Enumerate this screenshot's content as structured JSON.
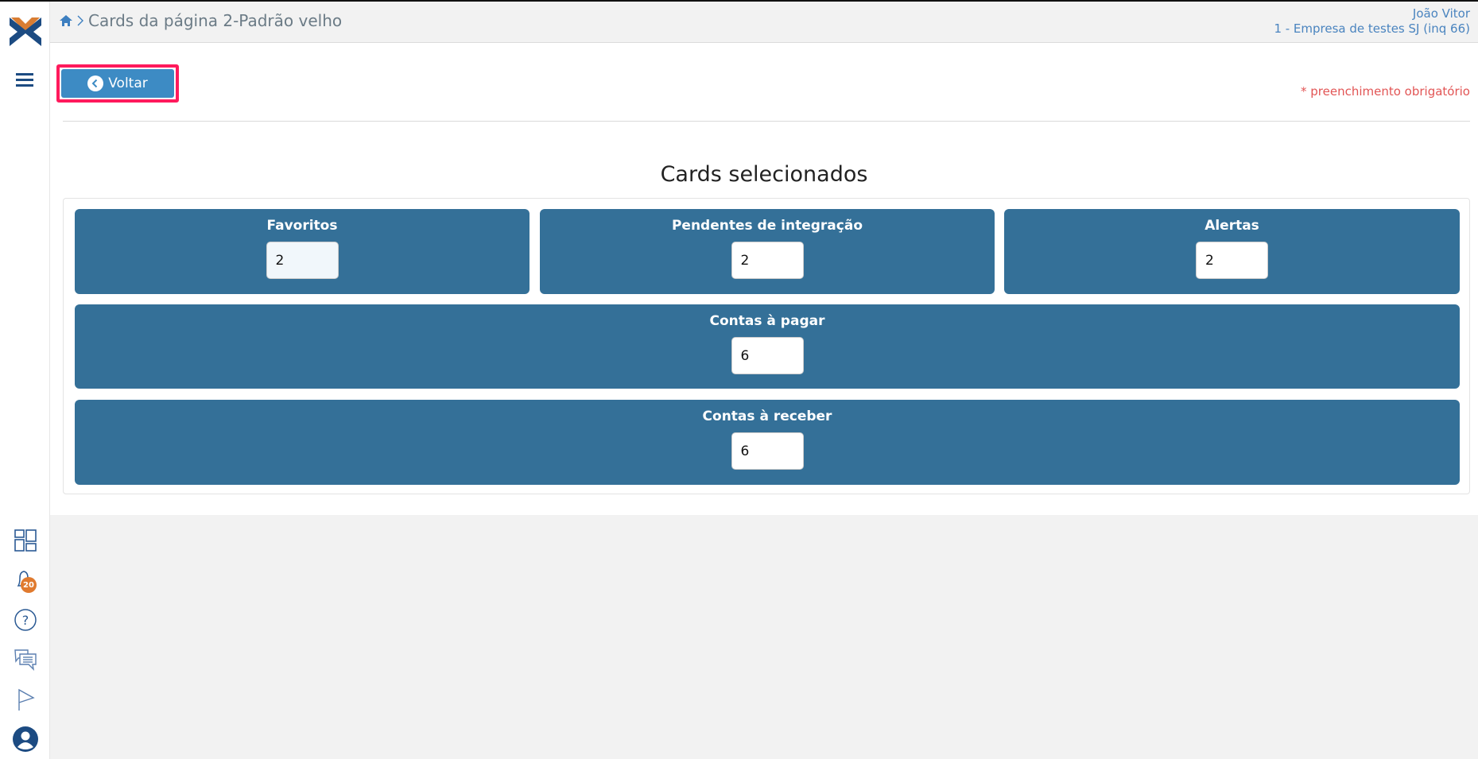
{
  "header": {
    "breadcrumb_title": "Cards da página 2-Padrão velho",
    "user_name": "João Vitor",
    "company": "1 - Empresa de testes SJ (inq 66)"
  },
  "toolbar": {
    "back_label": "Voltar",
    "required_note": "* preenchimento obrigatório"
  },
  "main": {
    "title": "Cards selecionados",
    "cards": [
      {
        "label": "Favoritos",
        "value": "2"
      },
      {
        "label": "Pendentes de integração",
        "value": "2"
      },
      {
        "label": "Alertas",
        "value": "2"
      },
      {
        "label": "Contas à pagar",
        "value": "6"
      },
      {
        "label": "Contas à receber",
        "value": "6"
      }
    ]
  },
  "sidebar": {
    "notification_count": "20"
  },
  "colors": {
    "card": "#347098",
    "button": "#3d8bc4",
    "highlight": "#ff1a5c",
    "badge": "#e07a2e",
    "required": "#e25555"
  }
}
